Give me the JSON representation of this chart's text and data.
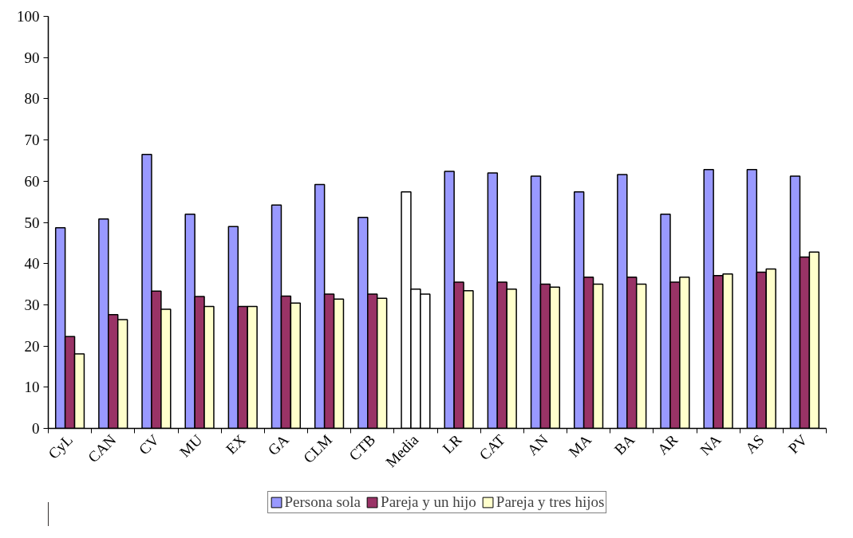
{
  "chart_data": {
    "type": "bar",
    "categories": [
      "CyL",
      "CAN",
      "CV",
      "MU",
      "EX",
      "GA",
      "CLM",
      "CTB",
      "Media",
      "LR",
      "CAT",
      "AN",
      "MA",
      "BA",
      "AR",
      "NA",
      "AS",
      "PV"
    ],
    "series": [
      {
        "name": "Persona sola",
        "color": "#9999ff",
        "colors": [
          "#9999ff",
          "#9999ff",
          "#9999ff",
          "#9999ff",
          "#9999ff",
          "#9999ff",
          "#9999ff",
          "#9999ff",
          "#ffffff",
          "#9999ff",
          "#9999ff",
          "#9999ff",
          "#9999ff",
          "#9999ff",
          "#9999ff",
          "#9999ff",
          "#9999ff",
          "#9999ff"
        ],
        "values": [
          48.7,
          50.8,
          66.5,
          52,
          49,
          54.2,
          59.2,
          51.2,
          57.4,
          62.4,
          62,
          61.2,
          57.4,
          61.6,
          52,
          62.8,
          62.8,
          61.2
        ]
      },
      {
        "name": "Pareja y un hijo",
        "color": "#993366",
        "colors": [
          "#993366",
          "#993366",
          "#993366",
          "#993366",
          "#993366",
          "#993366",
          "#993366",
          "#993366",
          "#ffffff",
          "#993366",
          "#993366",
          "#993366",
          "#993366",
          "#993366",
          "#993366",
          "#993366",
          "#993366",
          "#993366"
        ],
        "values": [
          22.3,
          27.6,
          33.3,
          32,
          29.6,
          32.1,
          32.6,
          32.6,
          33.8,
          35.5,
          35.5,
          35,
          36.7,
          36.7,
          35.5,
          37.1,
          37.9,
          41.6
        ]
      },
      {
        "name": "Pareja y tres hijos",
        "color": "#ffffcc",
        "colors": [
          "#ffffcc",
          "#ffffcc",
          "#ffffcc",
          "#ffffcc",
          "#ffffcc",
          "#ffffcc",
          "#ffffcc",
          "#ffffcc",
          "#ffffff",
          "#ffffcc",
          "#ffffcc",
          "#ffffcc",
          "#ffffcc",
          "#ffffcc",
          "#ffffcc",
          "#ffffcc",
          "#ffffcc",
          "#ffffcc"
        ],
        "values": [
          18.1,
          26.4,
          28.9,
          29.6,
          29.6,
          30.4,
          31.4,
          31.6,
          32.6,
          33.4,
          33.8,
          34.3,
          35,
          35,
          36.7,
          37.5,
          38.7,
          42.8
        ]
      }
    ],
    "ylim": [
      0,
      100
    ],
    "yticks": [
      0,
      10,
      20,
      30,
      40,
      50,
      60,
      70,
      80,
      90,
      100
    ],
    "legend": "bottom"
  }
}
